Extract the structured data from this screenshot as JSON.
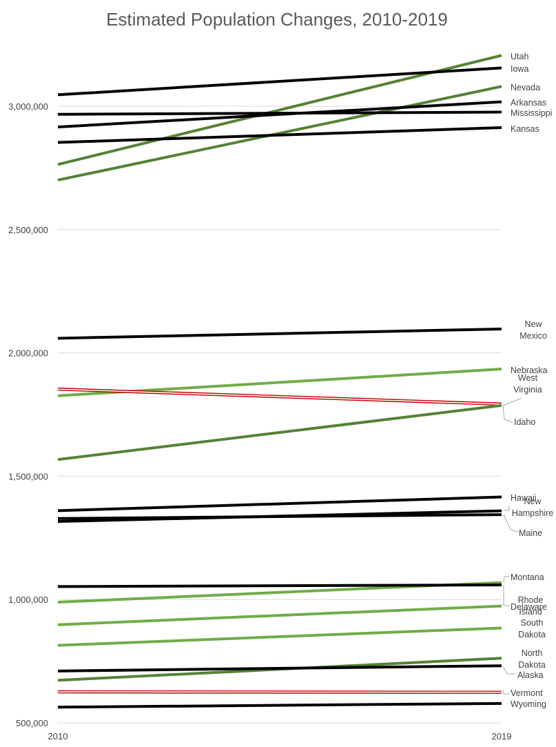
{
  "chart_data": {
    "type": "line",
    "title": "Estimated Population Changes, 2010-2019",
    "xlabel": "",
    "ylabel": "",
    "categories": [
      "2010",
      "2019"
    ],
    "ylim": [
      500000,
      3250000
    ],
    "yticks": [
      {
        "value": 500000,
        "label": "500,000"
      },
      {
        "value": 1000000,
        "label": "1,000,000"
      },
      {
        "value": 1500000,
        "label": "1,500,000"
      },
      {
        "value": 2000000,
        "label": "2,000,000"
      },
      {
        "value": 2500000,
        "label": "2,500,000"
      },
      {
        "value": 3000000,
        "label": "3,000,000"
      }
    ],
    "grid": true,
    "colors": {
      "decline": "#c00000",
      "growth_fast": "#548235",
      "growth": "#70ad47",
      "growth_slow": "#000000"
    },
    "series": [
      {
        "name": "Utah",
        "values": [
          2763885,
          3205958
        ],
        "color": "#548235",
        "lines": [
          "Utah"
        ]
      },
      {
        "name": "Iowa",
        "values": [
          3046355,
          3155070
        ],
        "color": "#000000",
        "lines": [
          "Iowa"
        ]
      },
      {
        "name": "Nevada",
        "values": [
          2700551,
          3080156
        ],
        "color": "#548235",
        "lines": [
          "Nevada"
        ]
      },
      {
        "name": "Arkansas",
        "values": [
          2915918,
          3017804
        ],
        "color": "#000000",
        "lines": [
          "Arkansas"
        ]
      },
      {
        "name": "Mississippi",
        "values": [
          2967297,
          2976149
        ],
        "color": "#000000",
        "lines": [
          "Mississippi"
        ]
      },
      {
        "name": "Kansas",
        "values": [
          2853118,
          2913314
        ],
        "color": "#000000",
        "lines": [
          "Kansas"
        ]
      },
      {
        "name": "New Mexico",
        "values": [
          2059179,
          2096829
        ],
        "color": "#000000",
        "lines": [
          "New",
          "Mexico"
        ]
      },
      {
        "name": "Nebraska",
        "values": [
          1826341,
          1934408
        ],
        "color": "#70ad47",
        "lines": [
          "Nebraska"
        ]
      },
      {
        "name": "West Virginia",
        "values": [
          1852994,
          1792147
        ],
        "color": "#c00000",
        "outlined": true,
        "lines": [
          "West",
          "Virginia"
        ]
      },
      {
        "name": "Idaho",
        "values": [
          1567582,
          1787065
        ],
        "color": "#548235",
        "lines": [
          "Idaho"
        ]
      },
      {
        "name": "Hawaii",
        "values": [
          1360301,
          1415872
        ],
        "color": "#000000",
        "lines": [
          "Hawaii"
        ]
      },
      {
        "name": "New Hampshire",
        "values": [
          1316470,
          1359711
        ],
        "color": "#000000",
        "lines": [
          "New",
          "Hampshire"
        ]
      },
      {
        "name": "Maine",
        "values": [
          1328361,
          1344212
        ],
        "color": "#000000",
        "lines": [
          "Maine"
        ]
      },
      {
        "name": "Montana",
        "values": [
          989415,
          1068778
        ],
        "color": "#70ad47",
        "lines": [
          "Montana"
        ]
      },
      {
        "name": "Rhode Island",
        "values": [
          1052567,
          1059361
        ],
        "color": "#000000",
        "lines": [
          "Rhode",
          "Island"
        ]
      },
      {
        "name": "Delaware",
        "values": [
          897934,
          973764
        ],
        "color": "#70ad47",
        "lines": [
          "Delaware"
        ]
      },
      {
        "name": "South Dakota",
        "values": [
          814180,
          884659
        ],
        "color": "#70ad47",
        "lines": [
          "South",
          "Dakota"
        ]
      },
      {
        "name": "North Dakota",
        "values": [
          672591,
          762062
        ],
        "color": "#548235",
        "lines": [
          "North",
          "Dakota"
        ]
      },
      {
        "name": "Alaska",
        "values": [
          710231,
          731545
        ],
        "color": "#000000",
        "lines": [
          "Alaska"
        ]
      },
      {
        "name": "Vermont",
        "values": [
          625741,
          623989
        ],
        "color": "#c00000",
        "outlined": true,
        "lines": [
          "Vermont"
        ]
      },
      {
        "name": "Wyoming",
        "values": [
          563626,
          578759
        ],
        "color": "#000000",
        "lines": [
          "Wyoming"
        ]
      }
    ]
  }
}
